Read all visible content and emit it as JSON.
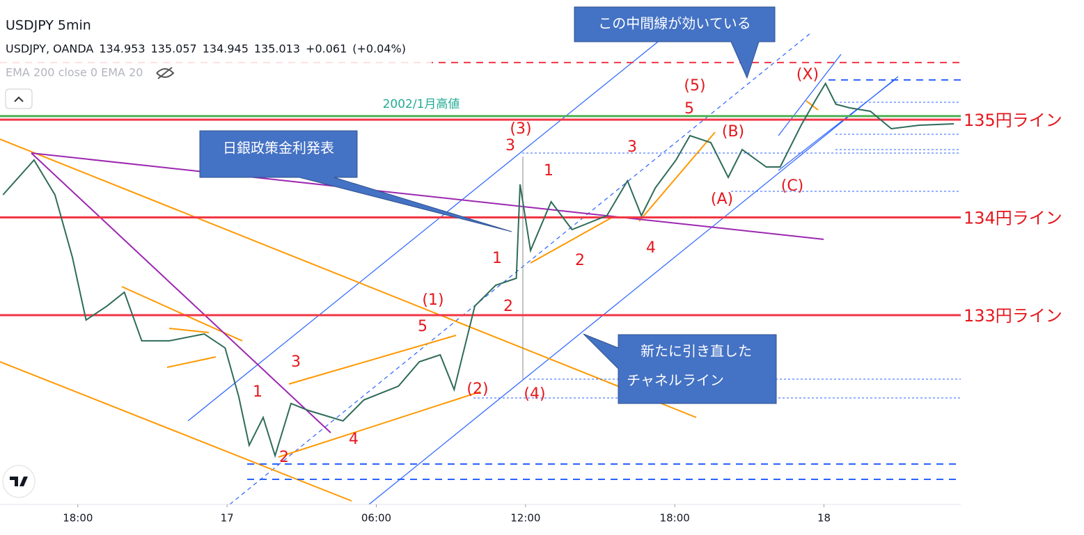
{
  "header": {
    "title": "USDJPY 5min",
    "symbol": "USDJPY, OANDA",
    "quote": {
      "open": 134.953,
      "high": 135.057,
      "low": 134.945,
      "close": 135.013,
      "change": "+0.061",
      "change_pct": "(+0.04%)"
    },
    "indicators": "EMA 200 close 0 EMA 20"
  },
  "chart_data": {
    "type": "line",
    "color": "#2f6b5a",
    "x": [
      -9.01,
      -7.76,
      -6.92,
      -6.22,
      -5.67,
      -4.83,
      -4.13,
      -3.43,
      -2.32,
      -0.92,
      -0.08,
      0.47,
      0.89,
      1.45,
      1.93,
      2.57,
      3.27,
      4.66,
      5.5,
      6.89,
      7.73,
      8.57,
      9.13,
      9.96,
      10.8,
      11.63,
      11.78,
      12.2,
      13.03,
      13.87,
      15.27,
      16.1,
      16.66,
      17.22,
      18.05,
      18.61,
      19.45,
      20.15,
      20.71,
      21.68,
      22.24,
      23.08,
      23.64,
      24.06,
      24.48,
      25.03,
      25.87,
      26.71,
      27.83,
      29.22
    ],
    "values": [
      134.231,
      134.587,
      134.231,
      133.591,
      132.95,
      133.093,
      133.235,
      132.737,
      132.737,
      132.808,
      132.665,
      132.167,
      131.669,
      131.954,
      131.562,
      132.096,
      132.025,
      131.918,
      132.132,
      132.274,
      132.523,
      132.594,
      132.238,
      133.093,
      133.306,
      133.377,
      134.338,
      133.662,
      134.16,
      133.875,
      134.018,
      134.374,
      134.018,
      134.302,
      134.587,
      134.836,
      134.765,
      134.409,
      134.694,
      134.516,
      134.516,
      134.943,
      135.192,
      135.37,
      135.157,
      135.121,
      135.085,
      134.907,
      134.943,
      134.957
    ],
    "xlim": [
      -9.13,
      29.5
    ],
    "ylim": [
      131.064,
      136.224
    ],
    "xticks": [
      {
        "value": -6,
        "label": "18:00"
      },
      {
        "value": 0,
        "label": "17"
      },
      {
        "value": 6,
        "label": "06:00"
      },
      {
        "value": 12,
        "label": "12:00"
      },
      {
        "value": 18,
        "label": "18:00"
      },
      {
        "value": 24,
        "label": "18"
      }
    ],
    "levels": [
      {
        "value": 135,
        "label": "135円ライン",
        "color": "#f23645"
      },
      {
        "value": 134,
        "label": "134円ライン",
        "color": "#f23645"
      },
      {
        "value": 133,
        "label": "133円ライン",
        "color": "#f23645"
      },
      {
        "value": 135.036,
        "label": "2002/1月高値",
        "color": "#4caf50"
      }
    ],
    "dashed_levels": [
      {
        "value": 135.584,
        "color": "#f23645"
      },
      {
        "value": 135.406,
        "color": "#2962ff"
      },
      {
        "value": 131.477,
        "color": "#2962ff"
      },
      {
        "value": 131.32,
        "color": "#2962ff"
      }
    ]
  },
  "wave_labels": [
    "(5)",
    "5",
    "(X)",
    "(3)",
    "3",
    "(B)",
    "3",
    "1",
    "(A)",
    "(C)",
    "4",
    "1",
    "2",
    "(1)",
    "2",
    "5",
    "3",
    "1",
    "(2)",
    "(4)",
    "4",
    "2"
  ],
  "callouts": [
    "この中間線が効いている",
    "日銀政策金利発表",
    [
      "新たに引き直した",
      "チャネルライン"
    ]
  ]
}
